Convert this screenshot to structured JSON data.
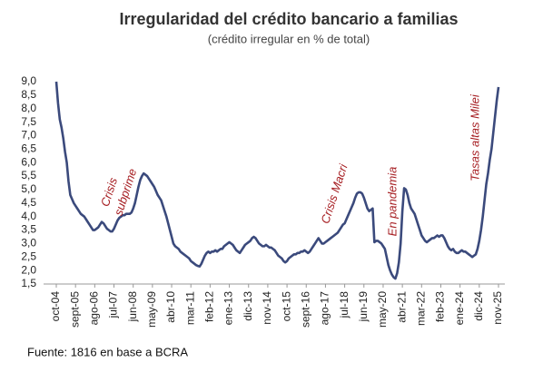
{
  "chart_data": {
    "type": "line",
    "title": "Irregularidad del crédito bancario a familias",
    "subtitle": "(crédito irregular en % de total)",
    "source": "Fuente: 1816 en base a BCRA",
    "annotations": [
      "Crisis",
      "subprime",
      "Crisis Macri",
      "En pandemia",
      "Tasas altas Milei"
    ],
    "color": "#3b4a7c",
    "ylim": [
      1.5,
      9.0
    ],
    "yticks": [
      {
        "value": 1.5,
        "label": "1,5"
      },
      {
        "value": 2.0,
        "label": "2,0"
      },
      {
        "value": 2.5,
        "label": "2,5"
      },
      {
        "value": 3.0,
        "label": "3,0"
      },
      {
        "value": 3.5,
        "label": "3,5"
      },
      {
        "value": 4.0,
        "label": "4,0"
      },
      {
        "value": 4.5,
        "label": "4,5"
      },
      {
        "value": 5.0,
        "label": "5,0"
      },
      {
        "value": 5.5,
        "label": "5,5"
      },
      {
        "value": 6.0,
        "label": "6,0"
      },
      {
        "value": 6.5,
        "label": "6,5"
      },
      {
        "value": 7.0,
        "label": "7,0"
      },
      {
        "value": 7.5,
        "label": "7,5"
      },
      {
        "value": 8.0,
        "label": "8,0"
      },
      {
        "value": 8.5,
        "label": "8,5"
      },
      {
        "value": 9.0,
        "label": "9,0"
      }
    ],
    "grid": false,
    "categories": [
      "oct-04",
      null,
      null,
      null,
      null,
      null,
      null,
      null,
      null,
      null,
      null,
      "sept-05",
      null,
      null,
      null,
      null,
      null,
      null,
      null,
      null,
      null,
      null,
      "ago-06",
      null,
      null,
      null,
      null,
      null,
      null,
      null,
      null,
      null,
      null,
      "jul-07",
      null,
      null,
      null,
      null,
      null,
      null,
      null,
      null,
      null,
      null,
      "jun-08",
      null,
      null,
      null,
      null,
      null,
      null,
      null,
      null,
      null,
      null,
      "may-09",
      null,
      null,
      null,
      null,
      null,
      null,
      null,
      null,
      null,
      null,
      "abr-10",
      null,
      null,
      null,
      null,
      null,
      null,
      null,
      null,
      null,
      null,
      "mar-11",
      null,
      null,
      null,
      null,
      null,
      null,
      null,
      null,
      null,
      null,
      "feb-12",
      null,
      null,
      null,
      null,
      null,
      null,
      null,
      null,
      null,
      null,
      "ene-13",
      null,
      null,
      null,
      null,
      null,
      null,
      null,
      null,
      null,
      null,
      "dic-13",
      null,
      null,
      null,
      null,
      null,
      null,
      null,
      null,
      null,
      null,
      "nov-14",
      null,
      null,
      null,
      null,
      null,
      null,
      null,
      null,
      null,
      null,
      "oct-15",
      null,
      null,
      null,
      null,
      null,
      null,
      null,
      null,
      null,
      null,
      "sept-16",
      null,
      null,
      null,
      null,
      null,
      null,
      null,
      null,
      null,
      null,
      "ago-17",
      null,
      null,
      null,
      null,
      null,
      null,
      null,
      null,
      null,
      null,
      "jul-18",
      null,
      null,
      null,
      null,
      null,
      null,
      null,
      null,
      null,
      null,
      "jun-19",
      null,
      null,
      null,
      null,
      null,
      null,
      null,
      null,
      null,
      null,
      "may-20",
      null,
      null,
      null,
      null,
      null,
      null,
      null,
      null,
      null,
      null,
      "abr-21",
      null,
      null,
      null,
      null,
      null,
      null,
      null,
      null,
      null,
      null,
      "mar-22",
      null,
      null,
      null,
      null,
      null,
      null,
      null,
      null,
      null,
      null,
      "feb-23",
      null,
      null,
      null,
      null,
      null,
      null,
      null,
      null,
      null,
      null,
      "ene-24",
      null,
      null,
      null,
      null,
      null,
      null,
      null,
      null,
      null,
      null,
      "dic-24",
      null,
      null,
      null,
      null,
      null,
      null,
      null,
      null,
      null,
      null,
      "nov-25"
    ],
    "values": [
      9.0,
      8.2,
      7.6,
      7.3,
      6.9,
      6.4,
      6.0,
      5.3,
      4.8,
      4.65,
      4.5,
      4.4,
      4.3,
      4.2,
      4.1,
      4.05,
      4.0,
      3.9,
      3.8,
      3.7,
      3.6,
      3.5,
      3.5,
      3.55,
      3.6,
      3.7,
      3.8,
      3.75,
      3.65,
      3.55,
      3.5,
      3.45,
      3.45,
      3.55,
      3.7,
      3.85,
      3.95,
      4.0,
      4.05,
      4.05,
      4.1,
      4.1,
      4.1,
      4.15,
      4.3,
      4.5,
      4.8,
      5.1,
      5.35,
      5.5,
      5.6,
      5.55,
      5.5,
      5.4,
      5.3,
      5.2,
      5.1,
      4.95,
      4.8,
      4.7,
      4.6,
      4.4,
      4.2,
      4.0,
      3.75,
      3.5,
      3.25,
      3.0,
      2.9,
      2.85,
      2.8,
      2.7,
      2.65,
      2.6,
      2.55,
      2.5,
      2.45,
      2.35,
      2.3,
      2.25,
      2.2,
      2.17,
      2.15,
      2.25,
      2.4,
      2.55,
      2.65,
      2.7,
      2.65,
      2.7,
      2.7,
      2.75,
      2.7,
      2.75,
      2.8,
      2.8,
      2.9,
      2.95,
      3.0,
      3.05,
      3.0,
      2.95,
      2.85,
      2.75,
      2.7,
      2.65,
      2.75,
      2.85,
      2.95,
      3.0,
      3.05,
      3.1,
      3.2,
      3.25,
      3.2,
      3.1,
      3.0,
      2.95,
      2.9,
      2.9,
      2.95,
      2.9,
      2.85,
      2.85,
      2.8,
      2.75,
      2.65,
      2.55,
      2.5,
      2.45,
      2.35,
      2.3,
      2.35,
      2.45,
      2.5,
      2.55,
      2.6,
      2.6,
      2.65,
      2.65,
      2.7,
      2.7,
      2.75,
      2.7,
      2.65,
      2.7,
      2.8,
      2.9,
      3.0,
      3.1,
      3.2,
      3.1,
      3.0,
      3.0,
      3.05,
      3.1,
      3.15,
      3.2,
      3.25,
      3.3,
      3.35,
      3.4,
      3.5,
      3.6,
      3.7,
      3.75,
      3.9,
      4.05,
      4.2,
      4.35,
      4.5,
      4.7,
      4.85,
      4.9,
      4.9,
      4.85,
      4.7,
      4.5,
      4.3,
      4.2,
      4.25,
      4.3,
      3.05,
      3.1,
      3.1,
      3.05,
      3.0,
      2.9,
      2.8,
      2.5,
      2.2,
      2.0,
      1.85,
      1.75,
      1.7,
      1.9,
      2.3,
      3.0,
      4.2,
      5.05,
      5.0,
      4.8,
      4.5,
      4.3,
      4.2,
      4.1,
      3.9,
      3.7,
      3.5,
      3.3,
      3.2,
      3.1,
      3.05,
      3.1,
      3.15,
      3.2,
      3.2,
      3.25,
      3.3,
      3.25,
      3.3,
      3.3,
      3.2,
      3.05,
      2.9,
      2.8,
      2.75,
      2.8,
      2.7,
      2.65,
      2.65,
      2.7,
      2.75,
      2.7,
      2.7,
      2.65,
      2.6,
      2.55,
      2.5,
      2.55,
      2.6,
      2.8,
      3.1,
      3.5,
      4.0,
      4.6,
      5.2,
      5.6,
      6.1,
      6.5,
      7.1,
      7.7,
      8.3,
      8.8
    ]
  }
}
